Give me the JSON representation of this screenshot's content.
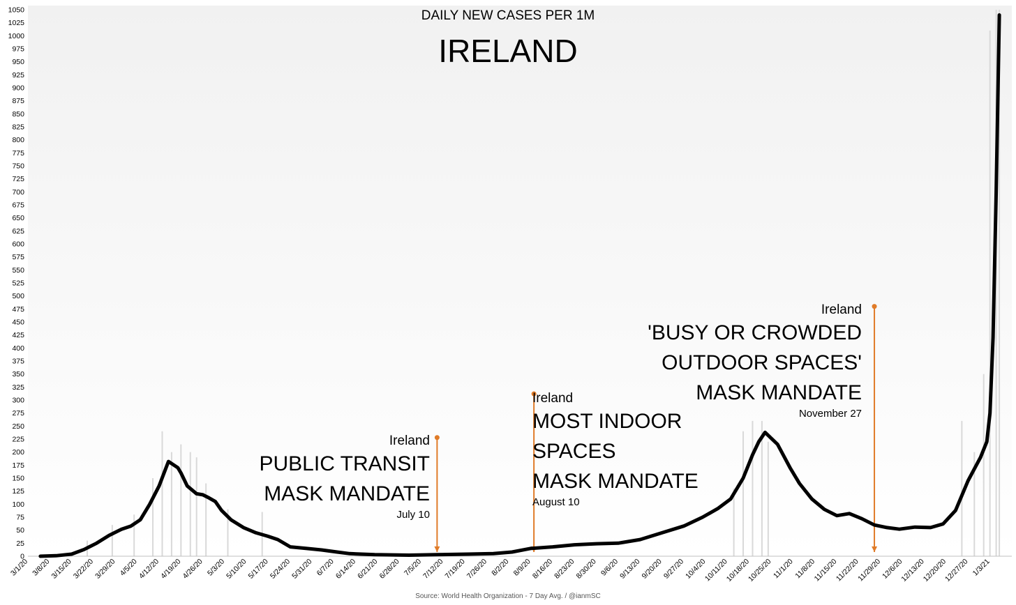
{
  "chart_data": {
    "type": "line",
    "subtitle": "DAILY NEW CASES PER 1M",
    "title": "IRELAND",
    "source": "Source: World Health Organization - 7 Day Avg. / @ianmSC",
    "xlabel": "",
    "ylabel": "",
    "ylim": [
      0,
      1050
    ],
    "y_ticks": [
      0,
      25,
      50,
      75,
      100,
      125,
      150,
      175,
      200,
      225,
      250,
      275,
      300,
      325,
      350,
      375,
      400,
      425,
      450,
      475,
      500,
      525,
      550,
      575,
      600,
      625,
      650,
      675,
      700,
      725,
      750,
      775,
      800,
      825,
      850,
      875,
      900,
      925,
      950,
      975,
      1000,
      1025,
      1050
    ],
    "x_tick_labels": [
      "3/1/20",
      "3/8/20",
      "3/15/20",
      "3/22/20",
      "3/29/20",
      "4/5/20",
      "4/12/20",
      "4/19/20",
      "4/26/20",
      "5/3/20",
      "5/10/20",
      "5/17/20",
      "5/24/20",
      "5/31/20",
      "6/7/20",
      "6/14/20",
      "6/21/20",
      "6/28/20",
      "7/5/20",
      "7/12/20",
      "7/19/20",
      "7/26/20",
      "8/2/20",
      "8/9/20",
      "8/16/20",
      "8/23/20",
      "8/30/20",
      "9/6/20",
      "9/13/20",
      "9/20/20",
      "9/27/20",
      "10/4/20",
      "10/11/20",
      "10/18/20",
      "10/25/20",
      "11/1/20",
      "11/8/20",
      "11/15/20",
      "11/22/20",
      "11/29/20",
      "12/6/20",
      "12/13/20",
      "12/20/20",
      "12/27/20",
      "1/3/21"
    ],
    "grid": false,
    "series": [
      {
        "type": "line",
        "color": "#000000",
        "x": [
          "2020-03-05",
          "2020-03-10",
          "2020-03-15",
          "2020-03-19",
          "2020-03-23",
          "2020-03-27",
          "2020-03-31",
          "2020-04-03",
          "2020-04-06",
          "2020-04-09",
          "2020-04-12",
          "2020-04-15",
          "2020-04-18",
          "2020-04-19",
          "2020-04-21",
          "2020-04-24",
          "2020-04-26",
          "2020-04-28",
          "2020-04-30",
          "2020-05-02",
          "2020-05-05",
          "2020-05-09",
          "2020-05-13",
          "2020-05-17",
          "2020-05-20",
          "2020-05-24",
          "2020-05-29",
          "2020-06-03",
          "2020-06-08",
          "2020-06-12",
          "2020-06-20",
          "2020-07-01",
          "2020-07-10",
          "2020-07-20",
          "2020-07-28",
          "2020-08-03",
          "2020-08-09",
          "2020-08-16",
          "2020-08-23",
          "2020-08-30",
          "2020-09-06",
          "2020-09-13",
          "2020-09-20",
          "2020-09-27",
          "2020-10-03",
          "2020-10-08",
          "2020-10-12",
          "2020-10-16",
          "2020-10-19",
          "2020-10-21",
          "2020-10-23",
          "2020-10-27",
          "2020-10-31",
          "2020-11-03",
          "2020-11-07",
          "2020-11-11",
          "2020-11-15",
          "2020-11-19",
          "2020-11-23",
          "2020-11-27",
          "2020-12-01",
          "2020-12-05",
          "2020-12-10",
          "2020-12-15",
          "2020-12-19",
          "2020-12-23",
          "2020-12-27",
          "2020-12-31",
          "2021-01-02",
          "2021-01-03",
          "2021-01-04",
          "2021-01-05",
          "2021-01-06"
        ],
        "values": [
          0,
          1,
          4,
          13,
          25,
          40,
          52,
          58,
          70,
          100,
          135,
          182,
          170,
          160,
          135,
          120,
          118,
          112,
          105,
          88,
          70,
          55,
          45,
          38,
          32,
          18,
          15,
          12,
          8,
          5,
          3,
          2,
          3,
          4,
          5,
          8,
          15,
          18,
          22,
          24,
          25,
          32,
          45,
          58,
          75,
          92,
          110,
          150,
          195,
          220,
          238,
          215,
          170,
          140,
          110,
          90,
          78,
          82,
          72,
          60,
          55,
          52,
          56,
          55,
          62,
          88,
          145,
          190,
          220,
          275,
          420,
          700,
          1040
        ]
      }
    ],
    "bars": {
      "type": "bar",
      "color": "#d9d9d9",
      "note": "daily values",
      "x": [
        "2020-03-20",
        "2020-03-28",
        "2020-04-04",
        "2020-04-10",
        "2020-04-13",
        "2020-04-16",
        "2020-04-19",
        "2020-04-22",
        "2020-04-24",
        "2020-04-27",
        "2020-05-04",
        "2020-05-15",
        "2020-10-13",
        "2020-10-16",
        "2020-10-19",
        "2020-10-22",
        "2020-10-24",
        "2020-12-25",
        "2020-12-29",
        "2021-01-01",
        "2021-01-03",
        "2021-01-05",
        "2021-01-06"
      ],
      "values": [
        30,
        60,
        80,
        150,
        240,
        200,
        215,
        200,
        190,
        140,
        90,
        85,
        130,
        240,
        260,
        260,
        220,
        260,
        200,
        350,
        1010,
        1050,
        1050
      ]
    },
    "annotations": [
      {
        "country": "Ireland",
        "lines": [
          "PUBLIC TRANSIT",
          "MASK MANDATE"
        ],
        "date_label": "July 10",
        "x": "2020-07-10",
        "y_top": 228,
        "color": "#e07b28"
      },
      {
        "country": "Ireland",
        "lines": [
          "MOST INDOOR",
          "SPACES",
          "MASK MANDATE"
        ],
        "date_label": "August 10",
        "x": "2020-08-10",
        "y_top": 312,
        "color": "#e07b28"
      },
      {
        "country": "Ireland",
        "lines": [
          "'BUSY OR CROWDED",
          "OUTDOOR SPACES'",
          "MASK MANDATE"
        ],
        "date_label": "November 27",
        "x": "2020-11-27",
        "y_top": 480,
        "color": "#e07b28"
      }
    ]
  }
}
